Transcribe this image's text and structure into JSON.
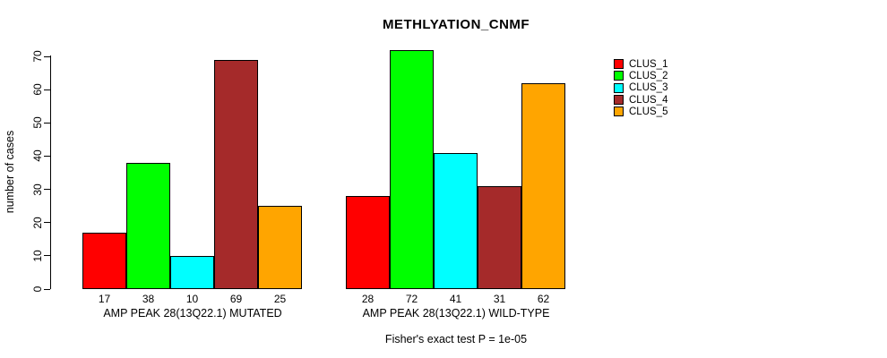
{
  "title": "METHLYATION_CNMF",
  "chart_data": {
    "type": "bar",
    "title": "METHLYATION_CNMF",
    "xlabel": "",
    "ylabel": "number of cases",
    "ylim": [
      0,
      70
    ],
    "yticks": [
      0,
      10,
      20,
      30,
      40,
      50,
      60,
      70
    ],
    "grid": false,
    "legend_position": "right",
    "categories": [
      "AMP PEAK 28(13Q22.1) MUTATED",
      "AMP PEAK 28(13Q22.1) WILD-TYPE"
    ],
    "series": [
      {
        "name": "CLUS_1",
        "color": "#FF0000",
        "values": [
          17,
          28
        ]
      },
      {
        "name": "CLUS_2",
        "color": "#00FF00",
        "values": [
          38,
          72
        ]
      },
      {
        "name": "CLUS_3",
        "color": "#00FFFF",
        "values": [
          10,
          41
        ]
      },
      {
        "name": "CLUS_4",
        "color": "#A52A2A",
        "values": [
          69,
          31
        ]
      },
      {
        "name": "CLUS_5",
        "color": "#FFA500",
        "values": [
          25,
          62
        ]
      }
    ],
    "bar_value_labels": {
      "AMP PEAK 28(13Q22.1) MUTATED": [
        17,
        38,
        10,
        69,
        25
      ],
      "AMP PEAK 28(13Q22.1) WILD-TYPE": [
        28,
        72,
        41,
        31,
        62
      ]
    },
    "caption": "Fisher's exact test P = 1e-05"
  }
}
